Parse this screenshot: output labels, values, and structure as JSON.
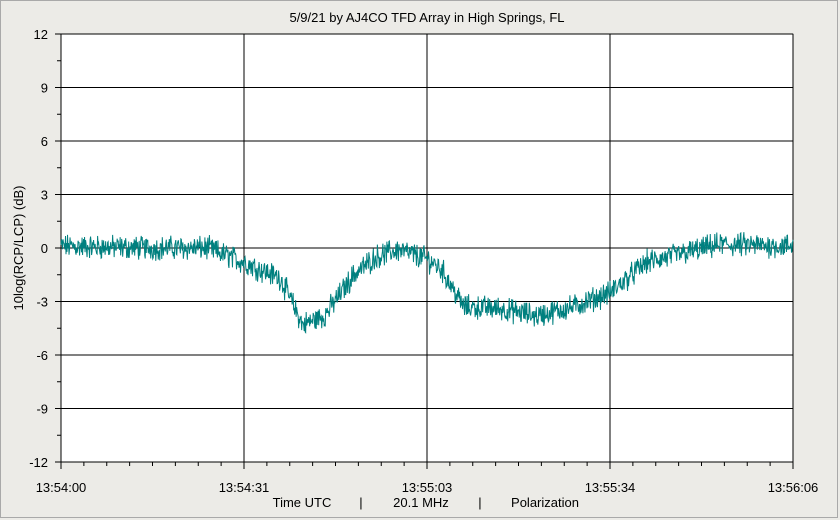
{
  "chart_data": {
    "type": "line",
    "title": "5/9/21  by  AJ4CO TFD Array  in  High Springs, FL",
    "ylabel": "10log(RCP/LCP)  (dB)",
    "xlabel_parts": [
      "Time UTC",
      "|",
      "20.1 MHz",
      "|",
      "Polarization"
    ],
    "ylim": [
      -12,
      12
    ],
    "y_ticks": [
      12,
      9,
      6,
      3,
      0,
      -3,
      -6,
      -9,
      -12
    ],
    "y_tick_labels": [
      "12",
      "9",
      "6",
      "3",
      "0",
      "-3",
      "-6",
      "-9",
      "-12"
    ],
    "x_tick_labels": [
      "13:54:00",
      "13:54:31",
      "13:55:03",
      "13:55:34",
      "13:56:06"
    ],
    "grid": true,
    "series": [
      {
        "color": "#00807f",
        "x_minutes_of_range": [
          0.0,
          0.12,
          0.2,
          0.25,
          0.3,
          0.33,
          0.36,
          0.4,
          0.43,
          0.46,
          0.5,
          0.52,
          0.55,
          0.6,
          0.65,
          0.7,
          0.75,
          0.8,
          0.9,
          1.0
        ],
        "values": [
          0.1,
          0.0,
          0.0,
          -0.8,
          -1.7,
          -4.3,
          -3.8,
          -1.5,
          -0.5,
          -0.1,
          -0.6,
          -1.2,
          -3.3,
          -3.4,
          -3.8,
          -3.3,
          -2.5,
          -0.8,
          0.2,
          0.1
        ]
      }
    ]
  }
}
